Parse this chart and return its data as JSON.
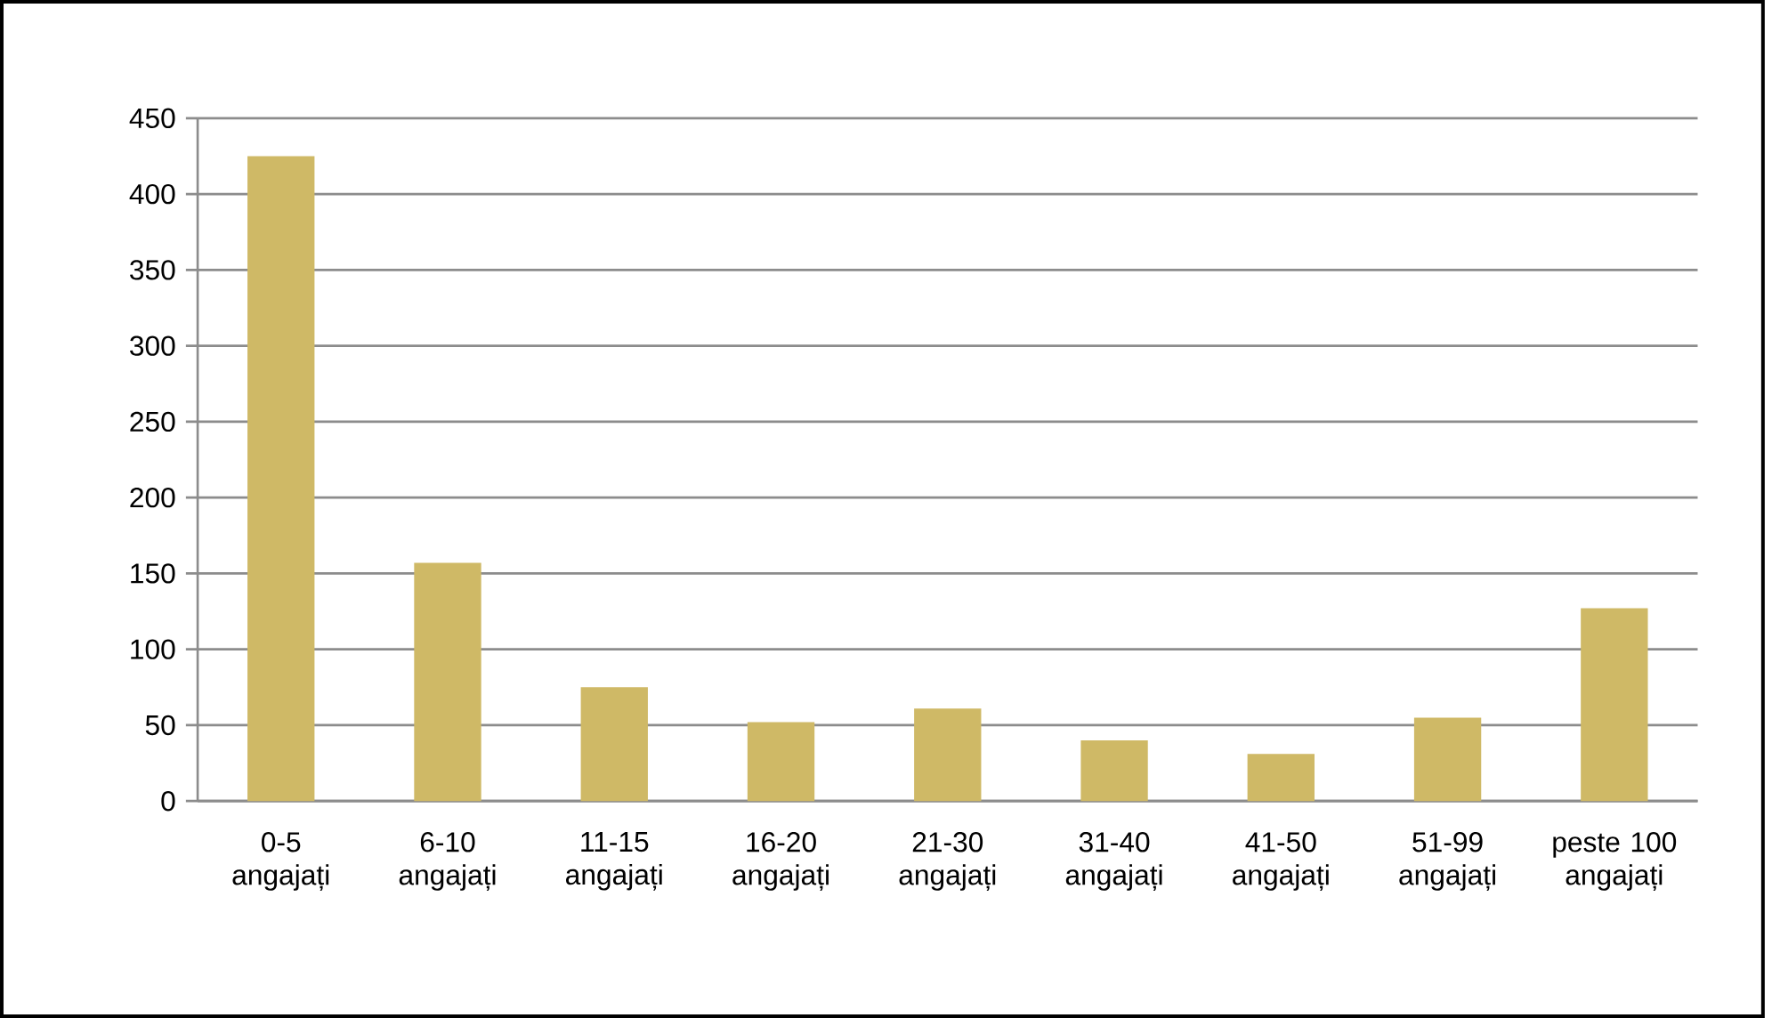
{
  "chart_data": {
    "type": "bar",
    "categories": [
      "0-5 angajați",
      "6-10 angajați",
      "11-15 angajați",
      "16-20 angajați",
      "21-30 angajați",
      "31-40 angajați",
      "41-50 angajați",
      "51-99 angajați",
      "peste 100 angajați"
    ],
    "values": [
      425,
      157,
      75,
      52,
      61,
      40,
      31,
      55,
      127
    ],
    "color": "#cfb966",
    "ylim": [
      0,
      450
    ],
    "yticks": [
      0,
      50,
      100,
      150,
      200,
      250,
      300,
      350,
      400,
      450
    ],
    "grid": "y"
  }
}
